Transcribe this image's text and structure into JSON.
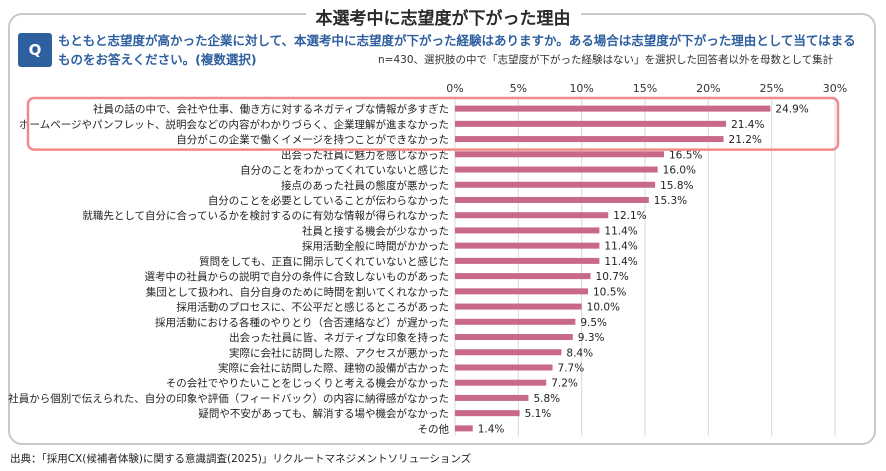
{
  "header": {
    "title": "本選考中に志望度が下がった理由",
    "q_label": "Q",
    "question": "もともと志望度が高かった企業に対して、本選考中に志望度が下がった経験はありますか。ある場合は志望度が下がった理由として当てはまるものをお答えください。(複数選択)",
    "note": "n=430、選択肢の中で「志望度が下がった経験はない」を選択した回答者以外を母数として集計"
  },
  "colors": {
    "bar": "#c9698a",
    "highlight": "#f08a8a",
    "grid": "#d9d9d9",
    "accent": "#2e5f9e"
  },
  "chart_data": {
    "type": "bar",
    "orientation": "horizontal",
    "xlim": [
      0,
      30
    ],
    "ticks": [
      "0%",
      "5%",
      "10%",
      "15%",
      "20%",
      "25%",
      "30%"
    ],
    "tick_values": [
      0,
      5,
      10,
      15,
      20,
      25,
      30
    ],
    "highlighted_top_n": 3,
    "categories": [
      "社員の話の中で、会社や仕事、働き方に対するネガティブな情報が多すぎた",
      "ホームページやパンフレット、説明会などの内容がわかりづらく、企業理解が進まなかった",
      "自分がこの企業で働くイメージを持つことができなかった",
      "出会った社員に魅力を感じなかった",
      "自分のことをわかってくれていないと感じた",
      "接点のあった社員の態度が悪かった",
      "自分のことを必要としていることが伝わらなかった",
      "就職先として自分に合っているかを検討するのに有効な情報が得られなかった",
      "社員と接する機会が少なかった",
      "採用活動全般に時間がかかった",
      "質問をしても、正直に開示してくれていないと感じた",
      "選考中の社員からの説明で自分の条件に合致しないものがあった",
      "集団として扱われ、自分自身のために時間を割いてくれなかった",
      "採用活動のプロセスに、不公平だと感じるところがあった",
      "採用活動における各種のやりとり（合否連絡など）が遅かった",
      "出会った社員に皆、ネガティブな印象を持った",
      "実際に会社に訪問した際、アクセスが悪かった",
      "実際に会社に訪問した際、建物の設備が古かった",
      "その会社でやりたいことをじっくりと考える機会がなかった",
      "社員から個別で伝えられた、自分の印象や評価（フィードバック）の内容に納得感がなかった",
      "疑問や不安があっても、解消する場や機会がなかった",
      "その他"
    ],
    "values": [
      24.9,
      21.4,
      21.2,
      16.5,
      16.0,
      15.8,
      15.3,
      12.1,
      11.4,
      11.4,
      11.4,
      10.7,
      10.5,
      10.0,
      9.5,
      9.3,
      8.4,
      7.7,
      7.2,
      5.8,
      5.1,
      1.4
    ],
    "labels": [
      "24.9%",
      "21.4%",
      "21.2%",
      "16.5%",
      "16.0%",
      "15.8%",
      "15.3%",
      "12.1%",
      "11.4%",
      "11.4%",
      "11.4%",
      "10.7%",
      "10.5%",
      "10.0%",
      "9.5%",
      "9.3%",
      "8.4%",
      "7.7%",
      "7.2%",
      "5.8%",
      "5.1%",
      "1.4%"
    ]
  },
  "footer": {
    "source": "出典：「採用CX(候補者体験)に関する意識調査(2025)」リクルートマネジメントソリューションズ"
  }
}
